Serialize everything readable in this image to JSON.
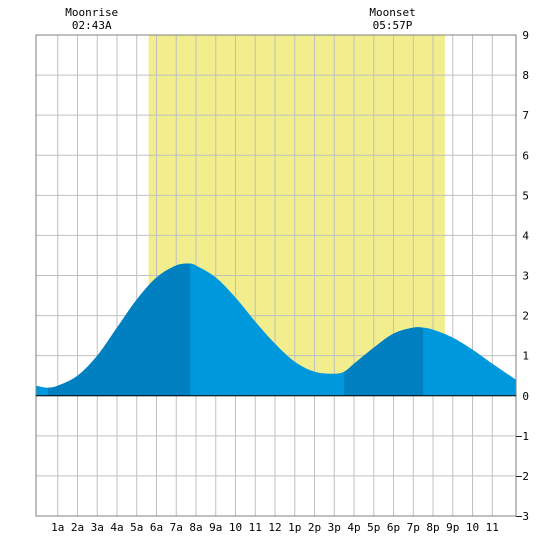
{
  "chart_data": {
    "type": "area",
    "title": "",
    "xlabel": "",
    "ylabel": "",
    "x_unit": "hour of day",
    "xlim": [
      -0.1,
      24.2
    ],
    "ylim": [
      -3,
      9
    ],
    "grid": true,
    "x_tick_labels": [
      {
        "x": 1,
        "label": "1a"
      },
      {
        "x": 2,
        "label": "2a"
      },
      {
        "x": 3,
        "label": "3a"
      },
      {
        "x": 4,
        "label": "4a"
      },
      {
        "x": 5,
        "label": "5a"
      },
      {
        "x": 6,
        "label": "6a"
      },
      {
        "x": 7,
        "label": "7a"
      },
      {
        "x": 8,
        "label": "8a"
      },
      {
        "x": 9,
        "label": "9a"
      },
      {
        "x": 10,
        "label": "10"
      },
      {
        "x": 11,
        "label": "11"
      },
      {
        "x": 12,
        "label": "12"
      },
      {
        "x": 13,
        "label": "1p"
      },
      {
        "x": 14,
        "label": "2p"
      },
      {
        "x": 15,
        "label": "3p"
      },
      {
        "x": 16,
        "label": "4p"
      },
      {
        "x": 17,
        "label": "5p"
      },
      {
        "x": 18,
        "label": "6p"
      },
      {
        "x": 19,
        "label": "7p"
      },
      {
        "x": 20,
        "label": "8p"
      },
      {
        "x": 21,
        "label": "9p"
      },
      {
        "x": 22,
        "label": "10"
      },
      {
        "x": 23,
        "label": "11"
      }
    ],
    "y_ticks": [
      -3,
      -2,
      -1,
      0,
      1,
      2,
      3,
      4,
      5,
      6,
      7,
      8,
      9
    ],
    "daylight_band": {
      "start": 5.6,
      "end": 20.6
    },
    "annotations": [
      {
        "label": "Moonrise",
        "time": "02:43A",
        "x": 2.72
      },
      {
        "label": "Moonset",
        "time": "05:57P",
        "x": 17.95
      }
    ],
    "series": [
      {
        "x": [
          -0.1,
          0.5,
          1,
          2,
          3,
          4,
          5,
          6,
          7,
          7.7,
          8,
          9,
          10,
          11,
          12,
          13,
          14,
          15,
          15.5,
          16,
          17,
          18,
          19,
          19.5,
          20,
          21,
          22,
          23,
          24.2
        ],
        "values": [
          0.25,
          0.2,
          0.25,
          0.5,
          1.0,
          1.7,
          2.4,
          2.95,
          3.25,
          3.3,
          3.25,
          2.95,
          2.45,
          1.85,
          1.3,
          0.85,
          0.6,
          0.55,
          0.6,
          0.8,
          1.2,
          1.55,
          1.7,
          1.7,
          1.65,
          1.45,
          1.15,
          0.8,
          0.4
        ]
      }
    ],
    "shaded_intervals": [
      {
        "start": 0.5,
        "end": 7.7,
        "color": "#0080c0"
      },
      {
        "start": 15.5,
        "end": 19.5,
        "color": "#0080c0"
      }
    ],
    "colors": {
      "water": "#0098dc",
      "water_rising": "#0080c0",
      "daylight": "#f2ee8e",
      "grid": "#c0c0c0",
      "axis": "#000000"
    }
  }
}
